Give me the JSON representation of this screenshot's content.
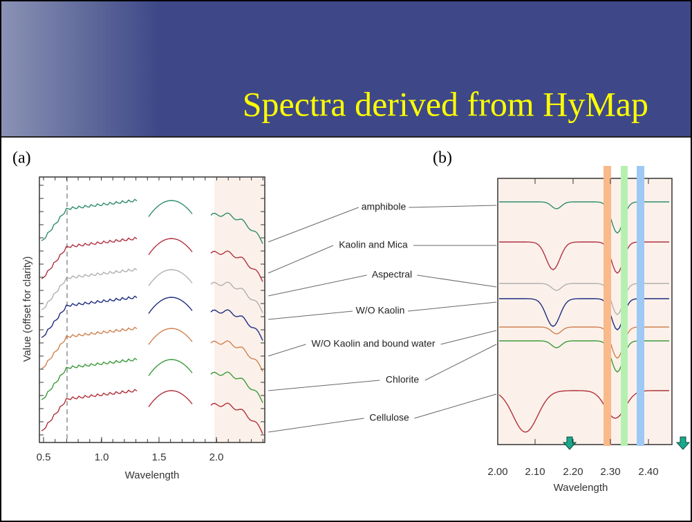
{
  "header": {
    "title": "Spectra derived from HyMap"
  },
  "panels": {
    "a": {
      "label": "(a)",
      "y_label": "Value (offset for clarity)",
      "x_label": "Wavelength",
      "x_ticks": [
        "0.5",
        "1.0",
        "1.5",
        "2.0"
      ]
    },
    "b": {
      "label": "(b)",
      "x_label": "Wavelength",
      "x_ticks": [
        "2.00",
        "2.10",
        "2.20",
        "2.30",
        "2.40"
      ]
    }
  },
  "spectra": [
    "amphibole",
    "Kaolin and Mica",
    "Aspectral",
    "W/O Kaolin",
    "W/O Kaolin and bound water",
    "Chlorite",
    "Cellulose"
  ]
}
